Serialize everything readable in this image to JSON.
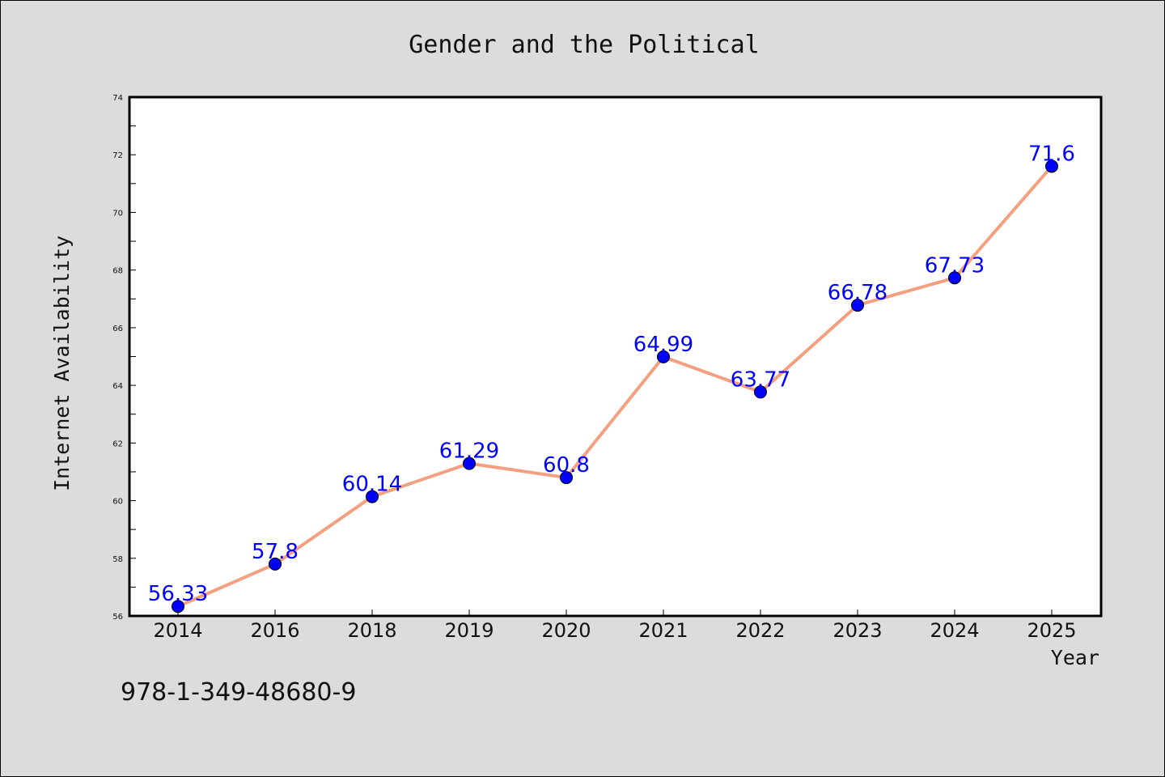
{
  "chart_data": {
    "type": "line",
    "title": "Gender and the Political",
    "xlabel": "Year",
    "ylabel": "Internet Availability",
    "categories": [
      "2014",
      "2016",
      "2018",
      "2019",
      "2020",
      "2021",
      "2022",
      "2023",
      "2024",
      "2025"
    ],
    "values": [
      56.33,
      57.8,
      60.14,
      61.29,
      60.8,
      64.99,
      63.77,
      66.78,
      67.73,
      71.6
    ],
    "data_labels": [
      "56.33",
      "57.8",
      "60.14",
      "61.29",
      "60.8",
      "64.99",
      "63.77",
      "66.78",
      "67.73",
      "71.6"
    ],
    "ylim": [
      56,
      74
    ],
    "yticks": [
      56,
      58,
      60,
      62,
      64,
      66,
      68,
      70,
      72,
      74
    ],
    "grid": false,
    "line_color": "#f4a080",
    "marker_color": "#0000ff",
    "label_color": "#0000ff",
    "background_color": "#dcdcdc",
    "plot_background": "#ffffff"
  },
  "footnote": "978-1-349-48680-9"
}
